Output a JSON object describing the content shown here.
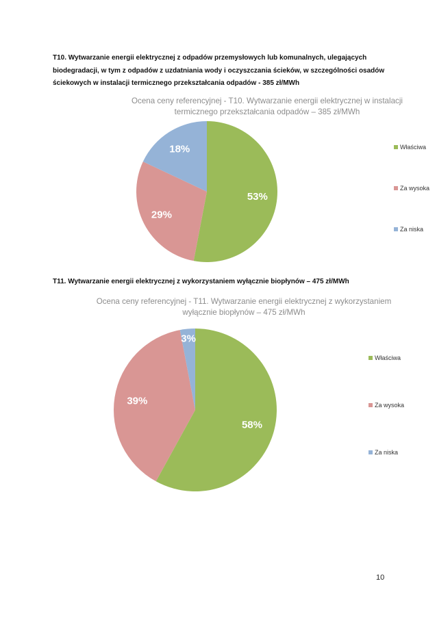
{
  "section_t10": {
    "heading": "T10. Wytwarzanie energii elektrycznej z odpadów przemysłowych lub komunalnych, ulegających biodegradacji, w tym z odpadów z uzdatniania wody i oczyszczania ścieków, w szczególności osadów ściekowych w instalacji termicznego przekształcania odpadów - 385 zł/MWh"
  },
  "section_t11": {
    "heading": "T11. Wytwarzanie energii elektrycznej z wykorzystaniem wyłącznie biopłynów – 475 zł/MWh"
  },
  "page_number": "10",
  "colors": {
    "wlasciwa": "#9bbb59",
    "za_wysoka": "#d99694",
    "za_niska": "#95b3d7"
  },
  "chart_data": [
    {
      "type": "pie",
      "title": "Ocena ceny referencyjnej - T10. Wytwarzanie energii elektrycznej w instalacji termicznego przekształcania odpadów – 385 zł/MWh",
      "categories": [
        "Właściwa",
        "Za wysoka",
        "Za niska"
      ],
      "values": [
        53,
        29,
        18
      ],
      "labels": [
        "53%",
        "29%",
        "18%"
      ],
      "colors": [
        "#9bbb59",
        "#d99694",
        "#95b3d7"
      ],
      "legend": "right"
    },
    {
      "type": "pie",
      "title": "Ocena ceny referencyjnej - T11. Wytwarzanie energii elektrycznej z wykorzystaniem wyłącznie biopłynów – 475 zł/MWh",
      "categories": [
        "Właściwa",
        "Za wysoka",
        "Za niska"
      ],
      "values": [
        58,
        39,
        3
      ],
      "labels": [
        "58%",
        "39%",
        "3%"
      ],
      "colors": [
        "#9bbb59",
        "#d99694",
        "#95b3d7"
      ],
      "legend": "right"
    }
  ]
}
